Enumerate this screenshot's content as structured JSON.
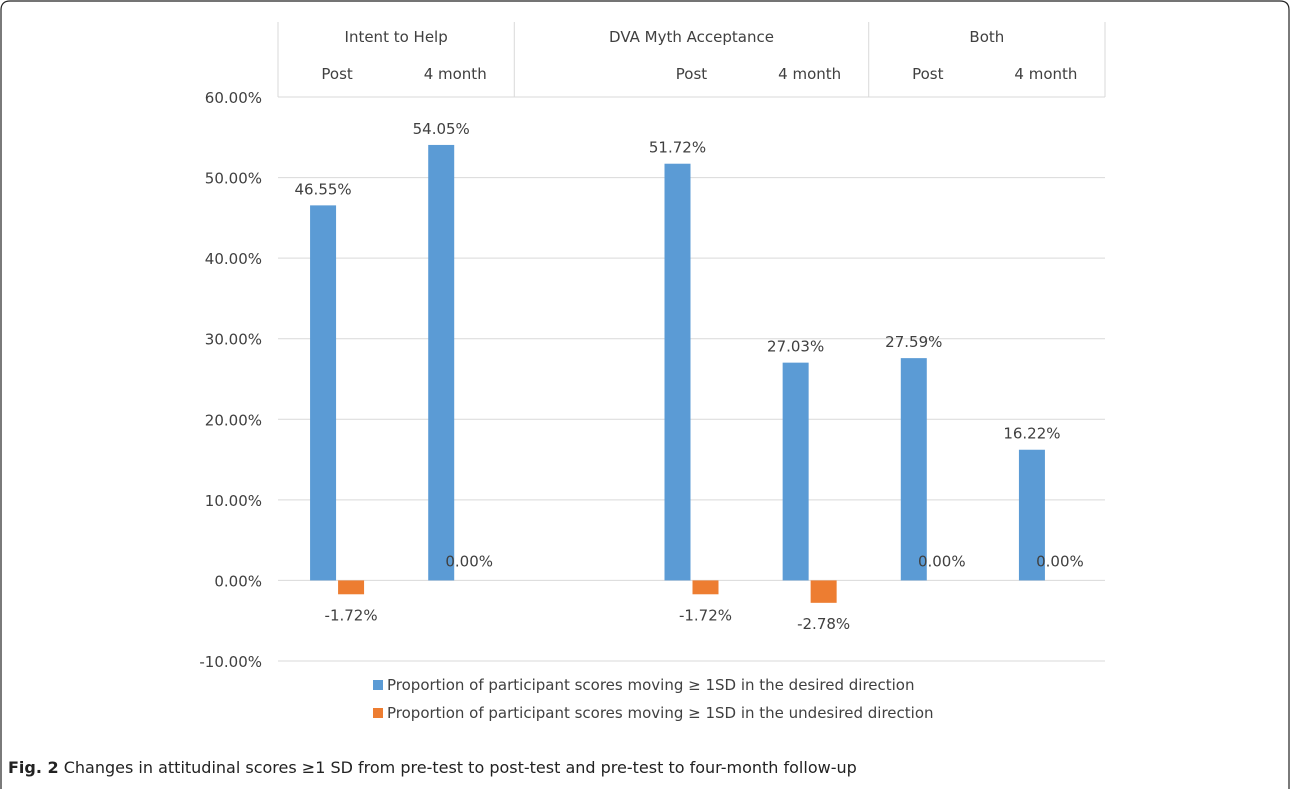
{
  "chart_data": {
    "type": "bar",
    "groups": [
      {
        "label": "Intent to Help",
        "subcategories": [
          "Post",
          "4 month"
        ]
      },
      {
        "label": "DVA Myth Acceptance",
        "subcategories": [
          "",
          "Post",
          "4 month"
        ]
      },
      {
        "label": "Both",
        "subcategories": [
          "Post",
          "4 month"
        ]
      }
    ],
    "categories": [
      "Intent to Help Post",
      "Intent to Help 4 month",
      "DVA Myth Acceptance (blank)",
      "DVA Myth Acceptance Post",
      "DVA Myth Acceptance 4 month",
      "Both Post",
      "Both 4 month"
    ],
    "series": [
      {
        "name": "Proportion of participant scores moving ≥ 1SD in the desired direction",
        "color": "#5b9bd5",
        "values": [
          46.55,
          54.05,
          null,
          51.72,
          27.03,
          27.59,
          16.22
        ],
        "labels": [
          "46.55%",
          "54.05%",
          "",
          "51.72%",
          "27.03%",
          "27.59%",
          "16.22%"
        ]
      },
      {
        "name": "Proportion of participant scores moving ≥ 1SD in the undesired direction",
        "color": "#ed7d31",
        "values": [
          -1.72,
          0.0,
          null,
          -1.72,
          -2.78,
          0.0,
          0.0
        ],
        "labels": [
          "-1.72%",
          "0.00%",
          "",
          "-1.72%",
          "-2.78%",
          "0.00%",
          "0.00%"
        ]
      }
    ],
    "ylim": [
      -10,
      60
    ],
    "yticks": [
      -10,
      0,
      10,
      20,
      30,
      40,
      50,
      60
    ],
    "ytick_labels": [
      "-10.00%",
      "0.00%",
      "10.00%",
      "20.00%",
      "30.00%",
      "40.00%",
      "50.00%",
      "60.00%"
    ],
    "grid": true,
    "legend_position": "bottom"
  },
  "caption": {
    "label": "Fig. 2",
    "text": " Changes in attitudinal scores ≥1 SD from pre-test to post-test and pre-test to four-month follow-up"
  }
}
